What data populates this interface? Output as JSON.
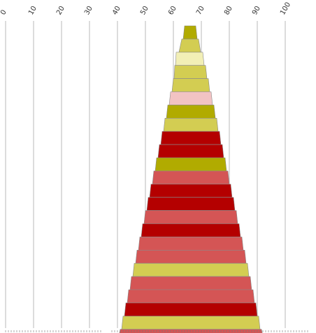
{
  "chart_data": {
    "type": "bar",
    "orientation": "horizontal",
    "stacking": "floating",
    "title": "",
    "xlabel": "",
    "ylabel": "",
    "xlim": [
      0,
      108
    ],
    "x_ticks": [
      0,
      10,
      20,
      30,
      40,
      50,
      60,
      70,
      80,
      90,
      100
    ],
    "x_tick_labels": [
      "0",
      "10",
      "20",
      "30",
      "40",
      "50",
      "60",
      "70",
      "80",
      "90",
      "100"
    ],
    "grid": true,
    "legend": "none",
    "colors": {
      "olive": "#b1ab00",
      "yellow": "#d3cd52",
      "cream": "#f2efb6",
      "pink": "#f2c3c3",
      "red": "#b40000",
      "salmon": "#d45555"
    },
    "bars": [
      {
        "start": 64.0,
        "end": 68.0,
        "color": "olive"
      },
      {
        "start": 63.0,
        "end": 69.0,
        "color": "yellow"
      },
      {
        "start": 61.0,
        "end": 70.5,
        "color": "cream"
      },
      {
        "start": 60.5,
        "end": 71.5,
        "color": "yellow"
      },
      {
        "start": 60.0,
        "end": 72.5,
        "color": "yellow"
      },
      {
        "start": 59.0,
        "end": 73.5,
        "color": "pink"
      },
      {
        "start": 58.0,
        "end": 74.5,
        "color": "olive"
      },
      {
        "start": 57.0,
        "end": 75.5,
        "color": "yellow"
      },
      {
        "start": 56.0,
        "end": 76.5,
        "color": "red"
      },
      {
        "start": 55.0,
        "end": 77.5,
        "color": "red"
      },
      {
        "start": 54.0,
        "end": 78.5,
        "color": "olive"
      },
      {
        "start": 53.0,
        "end": 79.5,
        "color": "salmon"
      },
      {
        "start": 52.0,
        "end": 80.5,
        "color": "red"
      },
      {
        "start": 51.0,
        "end": 81.5,
        "color": "red"
      },
      {
        "start": 50.0,
        "end": 82.5,
        "color": "salmon"
      },
      {
        "start": 49.0,
        "end": 83.5,
        "color": "red"
      },
      {
        "start": 48.0,
        "end": 84.5,
        "color": "salmon"
      },
      {
        "start": 47.0,
        "end": 85.5,
        "color": "salmon"
      },
      {
        "start": 46.0,
        "end": 86.5,
        "color": "yellow"
      },
      {
        "start": 45.0,
        "end": 87.5,
        "color": "salmon"
      },
      {
        "start": 44.0,
        "end": 88.5,
        "color": "salmon"
      },
      {
        "start": 43.0,
        "end": 89.5,
        "color": "red"
      },
      {
        "start": 42.0,
        "end": 90.5,
        "color": "yellow"
      },
      {
        "start": 41.0,
        "end": 91.5,
        "color": "salmon"
      }
    ]
  }
}
